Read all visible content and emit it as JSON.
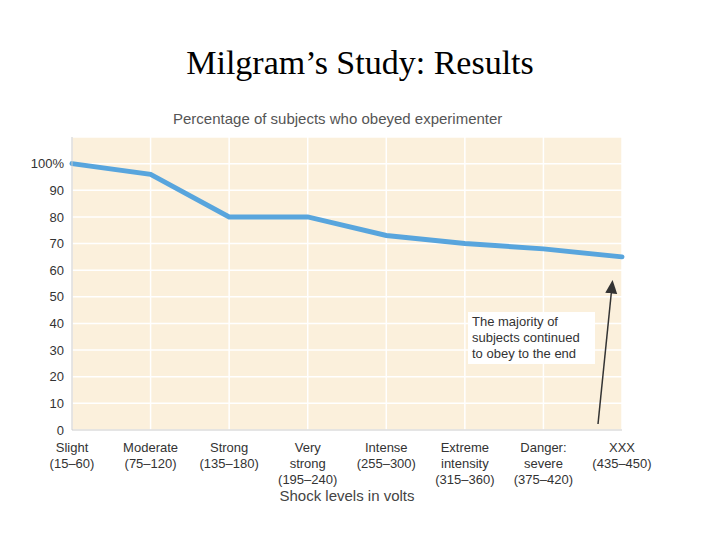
{
  "chart_data": {
    "type": "line",
    "title": "Milgram’s Study: Results",
    "subtitle": "Percentage of subjects who obeyed experimenter",
    "x_label": "Shock levels in volts",
    "categories": [
      "Slight\n(15–60)",
      "Moderate\n(75–120)",
      "Strong\n(135–180)",
      "Very\nstrong\n(195–240)",
      "Intense\n(255–300)",
      "Extreme\nintensity\n(315–360)",
      "Danger:\nsevere\n(375–420)",
      "XXX\n(435–450)"
    ],
    "values": [
      100,
      96,
      80,
      80,
      73,
      70,
      68,
      65
    ],
    "color": "#58a5dd",
    "ylim": [
      0,
      110
    ],
    "yticks": [
      0,
      10,
      20,
      30,
      40,
      50,
      60,
      70,
      80,
      90,
      {
        "value": 100,
        "label": "100%"
      }
    ],
    "grid": true,
    "annotations": [
      "The majority of\nsubjects continued\nto obey to the end"
    ]
  }
}
